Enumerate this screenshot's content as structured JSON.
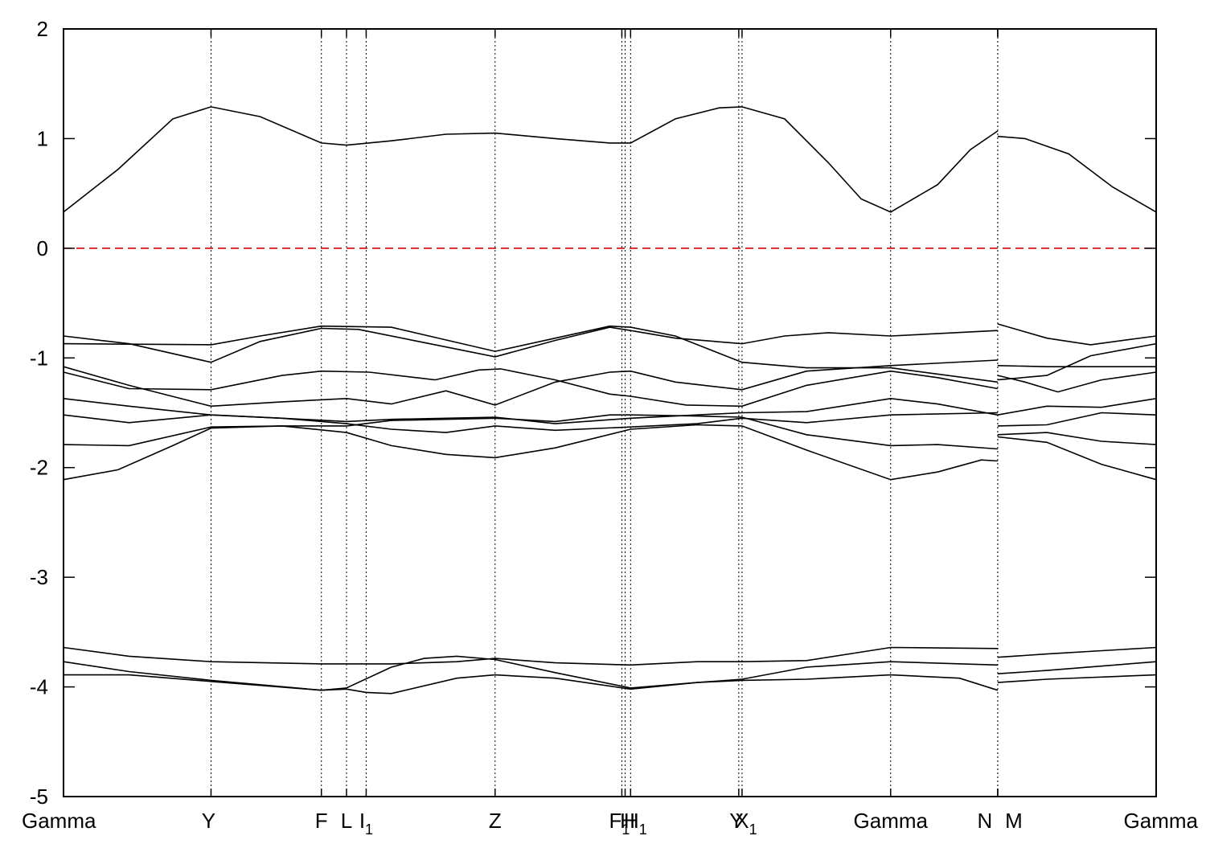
{
  "chart_data": {
    "type": "line",
    "title": "",
    "xlabel": "",
    "ylabel": "",
    "ylim": [
      -5,
      2
    ],
    "xlim": [
      0,
      1
    ],
    "yticks": [
      2,
      1,
      0,
      -1,
      -2,
      -3,
      -4,
      -5
    ],
    "grid": "vertical dotted lines at high-symmetry points",
    "legend": "none",
    "kpoints": [
      {
        "label": "Gamma",
        "sub": "",
        "x": 0.0
      },
      {
        "label": "Y",
        "sub": "",
        "x": 0.135
      },
      {
        "label": "F",
        "sub": "",
        "x": 0.236
      },
      {
        "label": "L",
        "sub": "",
        "x": 0.259
      },
      {
        "label": "I",
        "sub": "1",
        "x": 0.277
      },
      {
        "label": "Z",
        "sub": "",
        "x": 0.395
      },
      {
        "label": "F",
        "sub": "1",
        "x": 0.511
      },
      {
        "label": "H",
        "sub": "",
        "x": 0.514
      },
      {
        "label": "H",
        "sub": "1",
        "x": 0.519
      },
      {
        "label": "Y",
        "sub": "",
        "x": 0.618
      },
      {
        "label": "X",
        "sub": "1",
        "x": 0.621
      },
      {
        "label": "Gamma",
        "sub": "",
        "x": 0.757
      },
      {
        "label": "N",
        "sub": "",
        "x": 0.855
      },
      {
        "label": "M",
        "sub": "",
        "x": 0.855
      },
      {
        "label": "Gamma",
        "sub": "",
        "x": 1.0
      }
    ],
    "fermi_level": {
      "y": 0,
      "color": "#d00000"
    },
    "series": [
      {
        "points": [
          [
            0,
            0.33
          ],
          [
            0.05,
            0.72
          ],
          [
            0.1,
            1.18
          ],
          [
            0.135,
            1.29
          ],
          [
            0.18,
            1.2
          ],
          [
            0.236,
            0.96
          ],
          [
            0.259,
            0.94
          ],
          [
            0.3,
            0.98
          ],
          [
            0.35,
            1.04
          ],
          [
            0.395,
            1.05
          ],
          [
            0.45,
            1.0
          ],
          [
            0.5,
            0.96
          ],
          [
            0.519,
            0.96
          ],
          [
            0.56,
            1.18
          ],
          [
            0.6,
            1.28
          ],
          [
            0.621,
            1.29
          ],
          [
            0.66,
            1.18
          ],
          [
            0.7,
            0.78
          ],
          [
            0.73,
            0.45
          ],
          [
            0.757,
            0.33
          ],
          [
            0.8,
            0.58
          ],
          [
            0.83,
            0.9
          ],
          [
            0.855,
            1.07
          ],
          [
            null,
            null
          ],
          [
            0.855,
            1.02
          ],
          [
            0.88,
            1.0
          ],
          [
            0.92,
            0.86
          ],
          [
            0.96,
            0.56
          ],
          [
            1.0,
            0.33
          ]
        ]
      },
      {
        "points": [
          [
            0,
            -0.8
          ],
          [
            0.06,
            -0.87
          ],
          [
            0.135,
            -1.04
          ],
          [
            0.18,
            -0.85
          ],
          [
            0.236,
            -0.73
          ],
          [
            0.27,
            -0.74
          ],
          [
            0.33,
            -0.86
          ],
          [
            0.395,
            -0.99
          ],
          [
            0.45,
            -0.84
          ],
          [
            0.5,
            -0.72
          ],
          [
            0.519,
            -0.75
          ],
          [
            0.56,
            -0.82
          ],
          [
            0.621,
            -0.87
          ],
          [
            0.66,
            -0.8
          ],
          [
            0.7,
            -0.77
          ],
          [
            0.757,
            -0.8
          ],
          [
            0.855,
            -0.75
          ],
          [
            null,
            null
          ],
          [
            0.855,
            -0.69
          ],
          [
            0.9,
            -0.82
          ],
          [
            0.94,
            -0.88
          ],
          [
            1.0,
            -0.8
          ]
        ]
      },
      {
        "points": [
          [
            0,
            -0.87
          ],
          [
            0.135,
            -0.88
          ],
          [
            0.18,
            -0.8
          ],
          [
            0.236,
            -0.71
          ],
          [
            0.3,
            -0.72
          ],
          [
            0.395,
            -0.94
          ],
          [
            0.45,
            -0.82
          ],
          [
            0.5,
            -0.71
          ],
          [
            0.519,
            -0.72
          ],
          [
            0.56,
            -0.8
          ],
          [
            0.621,
            -1.04
          ],
          [
            0.68,
            -1.09
          ],
          [
            0.757,
            -1.09
          ],
          [
            0.855,
            -1.22
          ],
          [
            null,
            null
          ],
          [
            0.855,
            -1.2
          ],
          [
            0.9,
            -1.16
          ],
          [
            0.94,
            -0.98
          ],
          [
            1.0,
            -0.87
          ]
        ]
      },
      {
        "points": [
          [
            0,
            -1.08
          ],
          [
            0.06,
            -1.25
          ],
          [
            0.135,
            -1.44
          ],
          [
            0.2,
            -1.4
          ],
          [
            0.259,
            -1.37
          ],
          [
            0.3,
            -1.42
          ],
          [
            0.35,
            -1.3
          ],
          [
            0.395,
            -1.43
          ],
          [
            0.45,
            -1.22
          ],
          [
            0.5,
            -1.13
          ],
          [
            0.519,
            -1.12
          ],
          [
            0.56,
            -1.22
          ],
          [
            0.621,
            -1.29
          ],
          [
            0.68,
            -1.12
          ],
          [
            0.757,
            -1.07
          ],
          [
            0.855,
            -1.02
          ],
          [
            null,
            null
          ],
          [
            0.855,
            -1.07
          ],
          [
            0.9,
            -1.08
          ],
          [
            1.0,
            -1.08
          ]
        ]
      },
      {
        "points": [
          [
            0,
            -1.13
          ],
          [
            0.06,
            -1.28
          ],
          [
            0.135,
            -1.29
          ],
          [
            0.2,
            -1.16
          ],
          [
            0.236,
            -1.12
          ],
          [
            0.28,
            -1.13
          ],
          [
            0.34,
            -1.2
          ],
          [
            0.38,
            -1.11
          ],
          [
            0.4,
            -1.1
          ],
          [
            0.45,
            -1.2
          ],
          [
            0.5,
            -1.33
          ],
          [
            0.519,
            -1.35
          ],
          [
            0.57,
            -1.43
          ],
          [
            0.621,
            -1.44
          ],
          [
            0.68,
            -1.25
          ],
          [
            0.757,
            -1.12
          ],
          [
            0.8,
            -1.18
          ],
          [
            0.855,
            -1.28
          ],
          [
            null,
            null
          ],
          [
            0.855,
            -1.16
          ],
          [
            0.88,
            -1.22
          ],
          [
            0.91,
            -1.31
          ],
          [
            0.95,
            -1.2
          ],
          [
            1.0,
            -1.13
          ]
        ]
      },
      {
        "points": [
          [
            0,
            -1.37
          ],
          [
            0.06,
            -1.44
          ],
          [
            0.135,
            -1.52
          ],
          [
            0.2,
            -1.55
          ],
          [
            0.259,
            -1.58
          ],
          [
            0.3,
            -1.56
          ],
          [
            0.395,
            -1.54
          ],
          [
            0.45,
            -1.6
          ],
          [
            0.519,
            -1.55
          ],
          [
            0.58,
            -1.52
          ],
          [
            0.621,
            -1.5
          ],
          [
            0.68,
            -1.49
          ],
          [
            0.757,
            -1.37
          ],
          [
            0.8,
            -1.42
          ],
          [
            0.855,
            -1.52
          ],
          [
            null,
            null
          ],
          [
            0.855,
            -1.52
          ],
          [
            0.9,
            -1.44
          ],
          [
            0.95,
            -1.45
          ],
          [
            1.0,
            -1.37
          ]
        ]
      },
      {
        "points": [
          [
            0,
            -1.52
          ],
          [
            0.06,
            -1.59
          ],
          [
            0.135,
            -1.52
          ],
          [
            0.2,
            -1.55
          ],
          [
            0.259,
            -1.6
          ],
          [
            0.3,
            -1.65
          ],
          [
            0.35,
            -1.68
          ],
          [
            0.395,
            -1.62
          ],
          [
            0.45,
            -1.66
          ],
          [
            0.519,
            -1.63
          ],
          [
            0.58,
            -1.6
          ],
          [
            0.621,
            -1.55
          ],
          [
            0.68,
            -1.59
          ],
          [
            0.757,
            -1.52
          ],
          [
            0.855,
            -1.5
          ],
          [
            null,
            null
          ],
          [
            0.855,
            -1.62
          ],
          [
            0.9,
            -1.61
          ],
          [
            0.95,
            -1.5
          ],
          [
            1.0,
            -1.52
          ]
        ]
      },
      {
        "points": [
          [
            0,
            -1.79
          ],
          [
            0.06,
            -1.8
          ],
          [
            0.135,
            -1.63
          ],
          [
            0.2,
            -1.62
          ],
          [
            0.259,
            -1.62
          ],
          [
            0.3,
            -1.57
          ],
          [
            0.395,
            -1.55
          ],
          [
            0.45,
            -1.58
          ],
          [
            0.5,
            -1.52
          ],
          [
            0.519,
            -1.52
          ],
          [
            0.58,
            -1.53
          ],
          [
            0.621,
            -1.54
          ],
          [
            0.68,
            -1.7
          ],
          [
            0.757,
            -1.8
          ],
          [
            0.8,
            -1.79
          ],
          [
            0.855,
            -1.83
          ],
          [
            null,
            null
          ],
          [
            0.855,
            -1.7
          ],
          [
            0.9,
            -1.68
          ],
          [
            0.95,
            -1.76
          ],
          [
            1.0,
            -1.79
          ]
        ]
      },
      {
        "points": [
          [
            0,
            -2.11
          ],
          [
            0.05,
            -2.02
          ],
          [
            0.1,
            -1.8
          ],
          [
            0.135,
            -1.64
          ],
          [
            0.2,
            -1.62
          ],
          [
            0.259,
            -1.68
          ],
          [
            0.3,
            -1.8
          ],
          [
            0.35,
            -1.88
          ],
          [
            0.395,
            -1.91
          ],
          [
            0.45,
            -1.82
          ],
          [
            0.519,
            -1.65
          ],
          [
            0.58,
            -1.61
          ],
          [
            0.621,
            -1.62
          ],
          [
            0.68,
            -1.84
          ],
          [
            0.757,
            -2.11
          ],
          [
            0.8,
            -2.04
          ],
          [
            0.84,
            -1.93
          ],
          [
            0.855,
            -1.94
          ],
          [
            null,
            null
          ],
          [
            0.855,
            -1.72
          ],
          [
            0.9,
            -1.77
          ],
          [
            0.95,
            -1.97
          ],
          [
            1.0,
            -2.11
          ]
        ]
      },
      {
        "points": [
          [
            0,
            -3.64
          ],
          [
            0.06,
            -3.72
          ],
          [
            0.135,
            -3.77
          ],
          [
            0.236,
            -3.79
          ],
          [
            0.3,
            -3.79
          ],
          [
            0.36,
            -3.77
          ],
          [
            0.395,
            -3.74
          ],
          [
            0.45,
            -3.78
          ],
          [
            0.519,
            -3.8
          ],
          [
            0.58,
            -3.77
          ],
          [
            0.621,
            -3.77
          ],
          [
            0.68,
            -3.76
          ],
          [
            0.757,
            -3.64
          ],
          [
            0.855,
            -3.65
          ],
          [
            null,
            null
          ],
          [
            0.855,
            -3.73
          ],
          [
            0.9,
            -3.7
          ],
          [
            1.0,
            -3.64
          ]
        ]
      },
      {
        "points": [
          [
            0,
            -3.77
          ],
          [
            0.06,
            -3.86
          ],
          [
            0.135,
            -3.94
          ],
          [
            0.236,
            -4.03
          ],
          [
            0.259,
            -4.01
          ],
          [
            0.3,
            -3.82
          ],
          [
            0.33,
            -3.74
          ],
          [
            0.36,
            -3.72
          ],
          [
            0.395,
            -3.75
          ],
          [
            0.45,
            -3.87
          ],
          [
            0.519,
            -4.01
          ],
          [
            0.58,
            -3.96
          ],
          [
            0.621,
            -3.93
          ],
          [
            0.68,
            -3.82
          ],
          [
            0.757,
            -3.77
          ],
          [
            0.855,
            -3.8
          ],
          [
            null,
            null
          ],
          [
            0.855,
            -3.88
          ],
          [
            0.9,
            -3.85
          ],
          [
            1.0,
            -3.77
          ]
        ]
      },
      {
        "points": [
          [
            0,
            -3.89
          ],
          [
            0.06,
            -3.89
          ],
          [
            0.135,
            -3.95
          ],
          [
            0.236,
            -4.03
          ],
          [
            0.259,
            -4.02
          ],
          [
            0.277,
            -4.05
          ],
          [
            0.3,
            -4.06
          ],
          [
            0.36,
            -3.92
          ],
          [
            0.395,
            -3.89
          ],
          [
            0.45,
            -3.92
          ],
          [
            0.519,
            -4.02
          ],
          [
            0.58,
            -3.96
          ],
          [
            0.621,
            -3.94
          ],
          [
            0.68,
            -3.93
          ],
          [
            0.757,
            -3.89
          ],
          [
            0.82,
            -3.92
          ],
          [
            0.855,
            -4.03
          ],
          [
            null,
            null
          ],
          [
            0.855,
            -3.96
          ],
          [
            0.9,
            -3.93
          ],
          [
            1.0,
            -3.89
          ]
        ]
      }
    ]
  }
}
